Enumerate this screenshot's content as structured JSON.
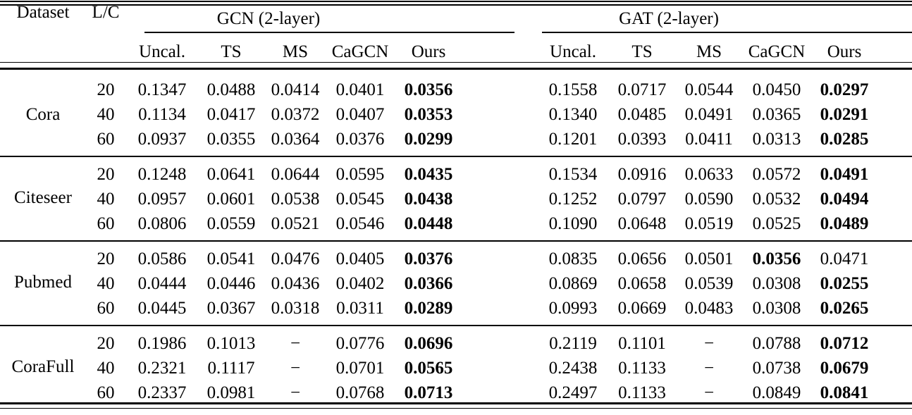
{
  "table": {
    "header": {
      "dataset": "Dataset",
      "lc": "L/C",
      "groups": [
        {
          "label": "GCN (2-layer)"
        },
        {
          "label": "GAT (2-layer)"
        }
      ],
      "subcolumns": [
        "Uncal.",
        "TS",
        "MS",
        "CaGCN",
        "Ours"
      ]
    },
    "missing_value_symbol": "−",
    "groups": [
      {
        "dataset": "Cora",
        "rows": [
          {
            "lc": "20",
            "cells": [
              {
                "v": "0.1347"
              },
              {
                "v": "0.0488"
              },
              {
                "v": "0.0414"
              },
              {
                "v": "0.0401"
              },
              {
                "v": "0.0356",
                "bold": true
              },
              {
                "v": "0.1558"
              },
              {
                "v": "0.0717"
              },
              {
                "v": "0.0544"
              },
              {
                "v": "0.0450"
              },
              {
                "v": "0.0297",
                "bold": true
              }
            ]
          },
          {
            "lc": "40",
            "cells": [
              {
                "v": "0.1134"
              },
              {
                "v": "0.0417"
              },
              {
                "v": "0.0372"
              },
              {
                "v": "0.0407"
              },
              {
                "v": "0.0353",
                "bold": true
              },
              {
                "v": "0.1340"
              },
              {
                "v": "0.0485"
              },
              {
                "v": "0.0491"
              },
              {
                "v": "0.0365"
              },
              {
                "v": "0.0291",
                "bold": true
              }
            ]
          },
          {
            "lc": "60",
            "cells": [
              {
                "v": "0.0937"
              },
              {
                "v": "0.0355"
              },
              {
                "v": "0.0364"
              },
              {
                "v": "0.0376"
              },
              {
                "v": "0.0299",
                "bold": true
              },
              {
                "v": "0.1201"
              },
              {
                "v": "0.0393"
              },
              {
                "v": "0.0411"
              },
              {
                "v": "0.0313"
              },
              {
                "v": "0.0285",
                "bold": true
              }
            ]
          }
        ]
      },
      {
        "dataset": "Citeseer",
        "rows": [
          {
            "lc": "20",
            "cells": [
              {
                "v": "0.1248"
              },
              {
                "v": "0.0641"
              },
              {
                "v": "0.0644"
              },
              {
                "v": "0.0595"
              },
              {
                "v": "0.0435",
                "bold": true
              },
              {
                "v": "0.1534"
              },
              {
                "v": "0.0916"
              },
              {
                "v": "0.0633"
              },
              {
                "v": "0.0572"
              },
              {
                "v": "0.0491",
                "bold": true
              }
            ]
          },
          {
            "lc": "40",
            "cells": [
              {
                "v": "0.0957"
              },
              {
                "v": "0.0601"
              },
              {
                "v": "0.0538"
              },
              {
                "v": "0.0545"
              },
              {
                "v": "0.0438",
                "bold": true
              },
              {
                "v": "0.1252"
              },
              {
                "v": "0.0797"
              },
              {
                "v": "0.0590"
              },
              {
                "v": "0.0532"
              },
              {
                "v": "0.0494",
                "bold": true
              }
            ]
          },
          {
            "lc": "60",
            "cells": [
              {
                "v": "0.0806"
              },
              {
                "v": "0.0559"
              },
              {
                "v": "0.0521"
              },
              {
                "v": "0.0546"
              },
              {
                "v": "0.0448",
                "bold": true
              },
              {
                "v": "0.1090"
              },
              {
                "v": "0.0648"
              },
              {
                "v": "0.0519"
              },
              {
                "v": "0.0525"
              },
              {
                "v": "0.0489",
                "bold": true
              }
            ]
          }
        ]
      },
      {
        "dataset": "Pubmed",
        "rows": [
          {
            "lc": "20",
            "cells": [
              {
                "v": "0.0586"
              },
              {
                "v": "0.0541"
              },
              {
                "v": "0.0476"
              },
              {
                "v": "0.0405"
              },
              {
                "v": "0.0376",
                "bold": true
              },
              {
                "v": "0.0835"
              },
              {
                "v": "0.0656"
              },
              {
                "v": "0.0501"
              },
              {
                "v": "0.0356",
                "bold": true
              },
              {
                "v": "0.0471"
              }
            ]
          },
          {
            "lc": "40",
            "cells": [
              {
                "v": "0.0444"
              },
              {
                "v": "0.0446"
              },
              {
                "v": "0.0436"
              },
              {
                "v": "0.0402"
              },
              {
                "v": "0.0366",
                "bold": true
              },
              {
                "v": "0.0869"
              },
              {
                "v": "0.0658"
              },
              {
                "v": "0.0539"
              },
              {
                "v": "0.0308"
              },
              {
                "v": "0.0255",
                "bold": true
              }
            ]
          },
          {
            "lc": "60",
            "cells": [
              {
                "v": "0.0445"
              },
              {
                "v": "0.0367"
              },
              {
                "v": "0.0318"
              },
              {
                "v": "0.0311"
              },
              {
                "v": "0.0289",
                "bold": true
              },
              {
                "v": "0.0993"
              },
              {
                "v": "0.0669"
              },
              {
                "v": "0.0483"
              },
              {
                "v": "0.0308"
              },
              {
                "v": "0.0265",
                "bold": true
              }
            ]
          }
        ]
      },
      {
        "dataset": "CoraFull",
        "rows": [
          {
            "lc": "20",
            "cells": [
              {
                "v": "0.1986"
              },
              {
                "v": "0.1013"
              },
              {
                "v": "−"
              },
              {
                "v": "0.0776"
              },
              {
                "v": "0.0696",
                "bold": true
              },
              {
                "v": "0.2119"
              },
              {
                "v": "0.1101"
              },
              {
                "v": "−"
              },
              {
                "v": "0.0788"
              },
              {
                "v": "0.0712",
                "bold": true
              }
            ]
          },
          {
            "lc": "40",
            "cells": [
              {
                "v": "0.2321"
              },
              {
                "v": "0.1117"
              },
              {
                "v": "−"
              },
              {
                "v": "0.0701"
              },
              {
                "v": "0.0565",
                "bold": true
              },
              {
                "v": "0.2438"
              },
              {
                "v": "0.1133"
              },
              {
                "v": "−"
              },
              {
                "v": "0.0738"
              },
              {
                "v": "0.0679",
                "bold": true
              }
            ]
          },
          {
            "lc": "60",
            "cells": [
              {
                "v": "0.2337"
              },
              {
                "v": "0.0981"
              },
              {
                "v": "−"
              },
              {
                "v": "0.0768"
              },
              {
                "v": "0.0713",
                "bold": true
              },
              {
                "v": "0.2497"
              },
              {
                "v": "0.1133"
              },
              {
                "v": "−"
              },
              {
                "v": "0.0849"
              },
              {
                "v": "0.0841",
                "bold": true
              }
            ]
          }
        ]
      }
    ]
  }
}
